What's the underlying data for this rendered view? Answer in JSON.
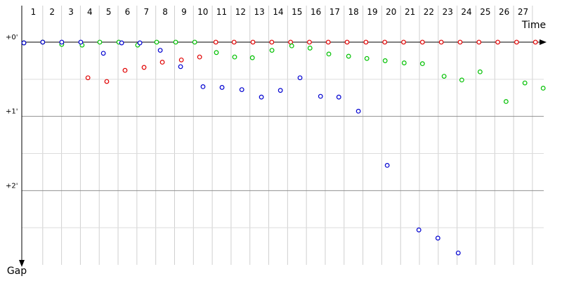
{
  "chart_data": {
    "type": "line",
    "x_label": "Time",
    "y_label": "Gap",
    "xlim": [
      0,
      27.6
    ],
    "ylim": [
      0,
      3.0
    ],
    "xticks": [
      1,
      2,
      3,
      4,
      5,
      6,
      7,
      8,
      9,
      10,
      11,
      12,
      13,
      14,
      15,
      16,
      17,
      18,
      19,
      20,
      21,
      22,
      23,
      24,
      25,
      26,
      27
    ],
    "yticks": [
      {
        "value": 0,
        "label": "+0'"
      },
      {
        "value": 1,
        "label": "+1'"
      },
      {
        "value": 2,
        "label": "+2'"
      }
    ],
    "minor_yticks": [
      0.5,
      1.5,
      2.5
    ],
    "grid": true,
    "series": [
      {
        "color": "#e00000",
        "x": [
          0,
          1.0,
          3.4,
          4.4,
          5.37,
          6.38,
          7.35,
          8.36,
          9.33,
          10.19,
          11.16,
          12.16,
          13.16,
          14.16,
          15.16,
          16.16,
          17.16,
          18.16,
          19.16,
          20.16,
          21.16,
          22.16,
          23.16,
          24.16,
          25.16,
          26.16,
          27.16
        ],
        "values": [
          0.01,
          0,
          0.48,
          0.53,
          0.38,
          0.34,
          0.27,
          0.24,
          0.2,
          0,
          0,
          0,
          0,
          0,
          0,
          0,
          0,
          0,
          0,
          0,
          0,
          0,
          0,
          0,
          0,
          0,
          0
        ]
      },
      {
        "color": "#00c000",
        "x": [
          0,
          1.0,
          2.01,
          3.09,
          4.03,
          5.04,
          6.04,
          7.05,
          8.06,
          9.07,
          10.22,
          11.19,
          12.13,
          13.17,
          14.22,
          15.19,
          16.19,
          17.24,
          18.21,
          19.18,
          20.19,
          21.16,
          22.31,
          23.25,
          24.22,
          25.6,
          26.6,
          27.57
        ],
        "values": [
          0.01,
          0,
          0.03,
          0.04,
          0,
          0,
          0.04,
          0,
          0,
          0,
          0.14,
          0.2,
          0.21,
          0.11,
          0.05,
          0.08,
          0.16,
          0.19,
          0.22,
          0.25,
          0.28,
          0.29,
          0.46,
          0.51,
          0.4,
          0.8,
          0.55,
          0.62
        ]
      },
      {
        "color": "#0000d0",
        "x": [
          0,
          1.0,
          2.01,
          3.02,
          4.22,
          5.19,
          6.16,
          7.24,
          8.32,
          9.51,
          10.52,
          11.57,
          12.61,
          13.62,
          14.66,
          15.75,
          16.72,
          17.76,
          19.29,
          20.97,
          21.98,
          23.06
        ],
        "values": [
          0.01,
          0,
          0,
          0,
          0.15,
          0.01,
          0.01,
          0.11,
          0.33,
          0.6,
          0.61,
          0.64,
          0.74,
          0.65,
          0.48,
          0.73,
          0.74,
          0.93,
          1.66,
          2.53,
          2.64,
          2.84
        ]
      }
    ]
  }
}
